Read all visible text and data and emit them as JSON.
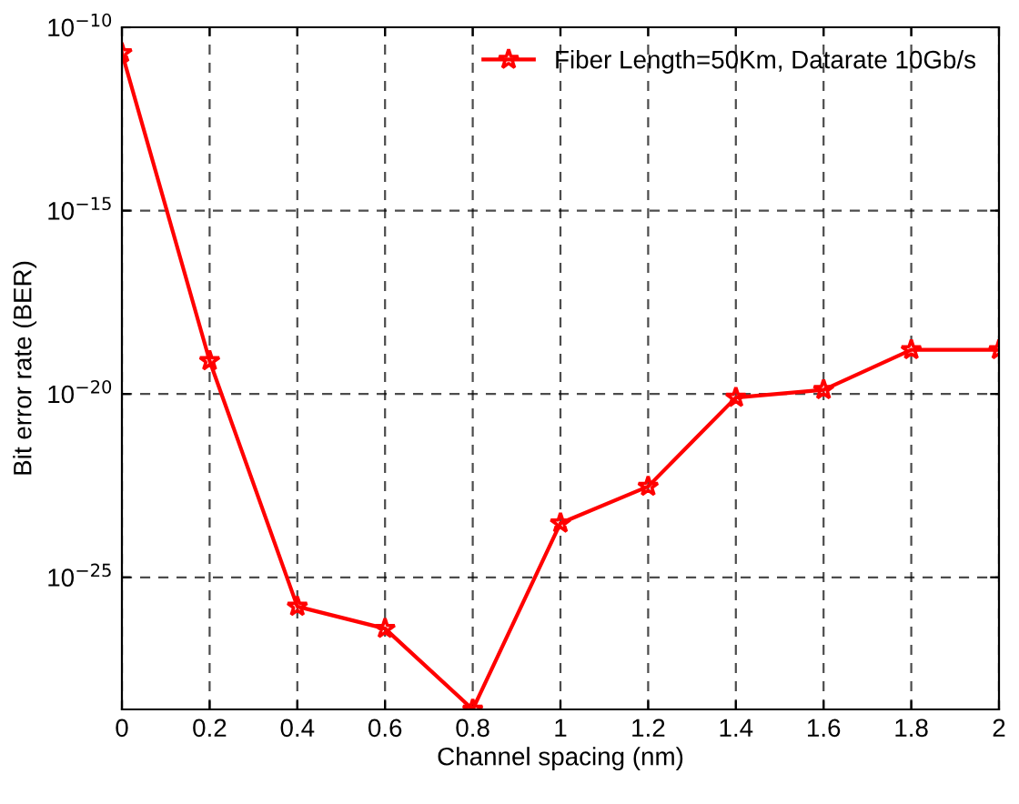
{
  "chart_data": {
    "type": "line",
    "xlabel": "Channel spacing (nm)",
    "ylabel": "Bit error rate (BER)",
    "x": [
      0,
      0.2,
      0.4,
      0.6,
      0.8,
      1,
      1.2,
      1.4,
      1.6,
      1.8,
      2
    ],
    "series": [
      {
        "name": "Fiber Length=50Km, Datarate 10Gb/s",
        "color": "#ff0000",
        "values": [
          2e-11,
          8e-20,
          1.6e-26,
          4e-27,
          2.5e-29,
          3e-24,
          3e-23,
          8e-21,
          1.3e-20,
          1.6e-19,
          1.6e-19
        ]
      }
    ],
    "log": "y",
    "xlim": [
      0,
      2
    ],
    "ylim": [
      2.5e-29,
      1e-10
    ],
    "xticks": [
      0,
      0.2,
      0.4,
      0.6,
      0.8,
      1,
      1.2,
      1.4,
      1.6,
      1.8,
      2
    ],
    "yticks": [
      {
        "value": 1e-25,
        "label": "10$^{−25}$"
      },
      {
        "value": 1e-20,
        "label": "10$^{−20}$"
      },
      {
        "value": 1e-15,
        "label": "10$^{−15}$"
      },
      {
        "value": 1e-10,
        "label": "10$^{−10}$"
      }
    ],
    "grid": true,
    "legend": "top right",
    "marker": "star",
    "line_style": "solid"
  }
}
